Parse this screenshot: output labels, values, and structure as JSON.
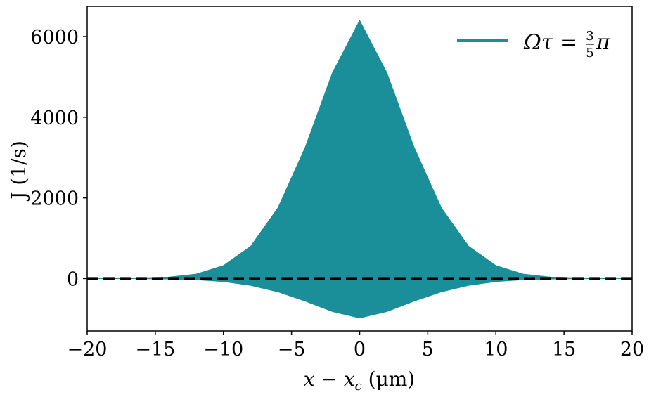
{
  "chart_data": {
    "type": "area",
    "xlabel": "x − x",
    "xlabel_sub": "c",
    "xlabel_unit": " (μm)",
    "ylabel": "J (1/s)",
    "xlim": [
      -20,
      20
    ],
    "ylim": [
      -1300,
      6750
    ],
    "xticks": [
      -20,
      -15,
      -10,
      -5,
      0,
      5,
      10,
      15,
      20
    ],
    "xtick_labels": [
      "−20",
      "−15",
      "−10",
      "−5",
      "0",
      "5",
      "10",
      "15",
      "20"
    ],
    "yticks": [
      0,
      2000,
      4000,
      6000
    ],
    "ytick_labels": [
      "0",
      "2000",
      "4000",
      "6000"
    ],
    "grid": false,
    "legend": {
      "location": "top-right",
      "label_main": "Ωτ =",
      "label_num": "3",
      "label_den": "5",
      "label_end": "π"
    },
    "series": [
      {
        "name": "Ωτ = 3/5 π",
        "color": "#1a8e99",
        "x": [
          -20,
          -18,
          -16,
          -14,
          -12,
          -10,
          -8,
          -6,
          -4,
          -2,
          0,
          2,
          4,
          6,
          8,
          10,
          12,
          14,
          16,
          18,
          20
        ],
        "upper": [
          0,
          5,
          15,
          35,
          110,
          320,
          800,
          1750,
          3250,
          5100,
          6400,
          5100,
          3250,
          1750,
          800,
          320,
          110,
          35,
          15,
          5,
          0
        ],
        "lower": [
          0,
          -2,
          -5,
          -12,
          -30,
          -75,
          -170,
          -330,
          -560,
          -820,
          -980,
          -820,
          -560,
          -330,
          -170,
          -75,
          -30,
          -12,
          -5,
          -2,
          0
        ]
      }
    ],
    "reference_line": {
      "y": 0,
      "style": "dashed",
      "color": "#000000"
    }
  }
}
